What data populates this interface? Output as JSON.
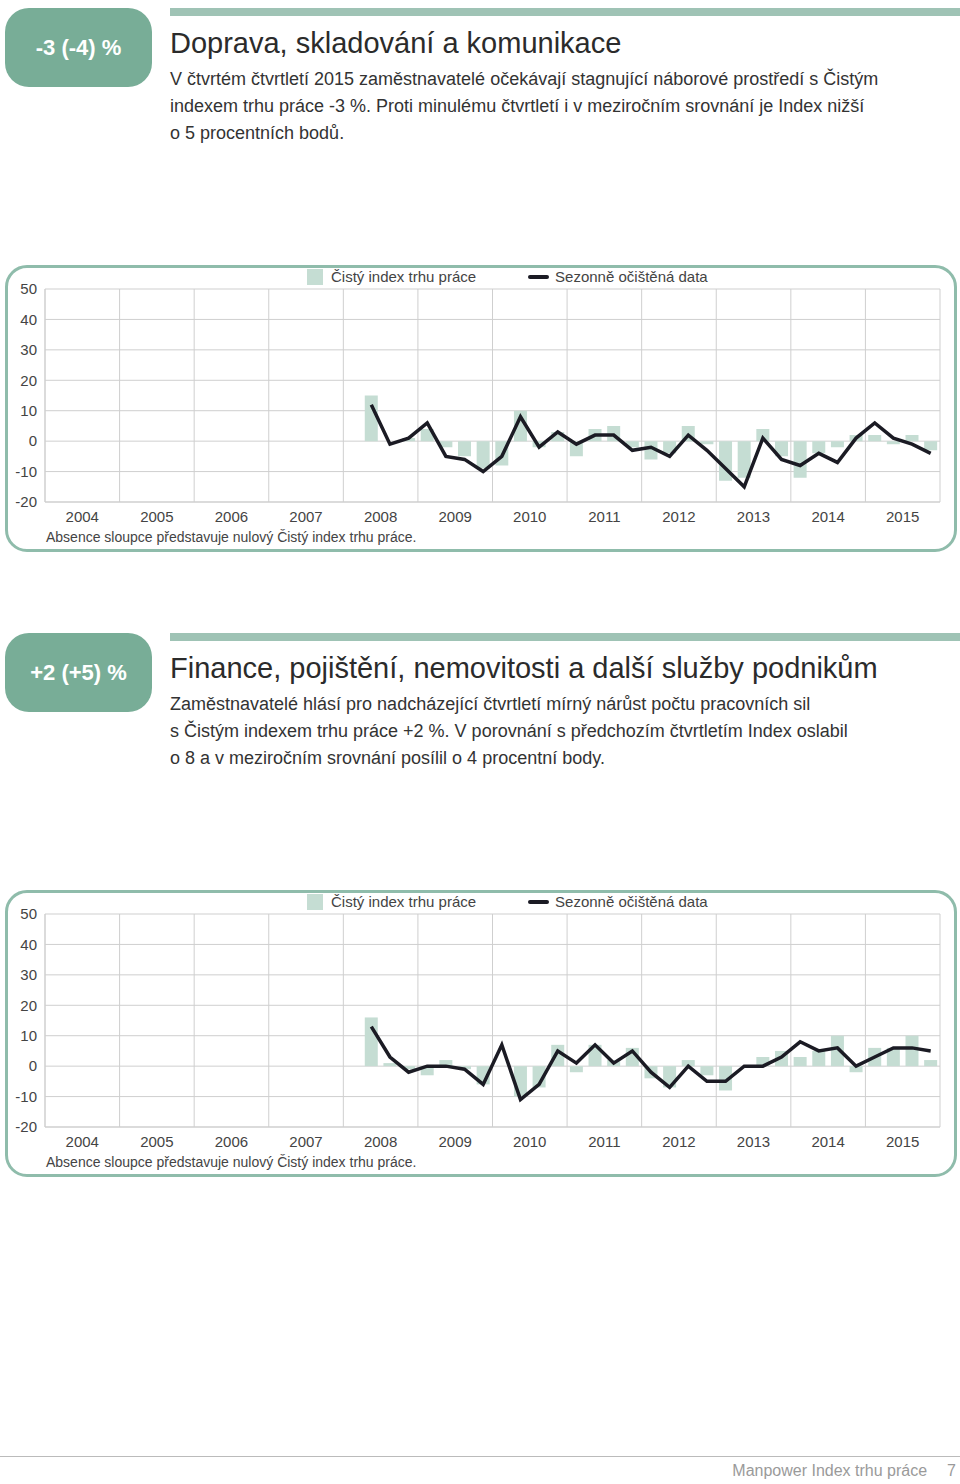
{
  "chart_data": [
    {
      "type": "combo",
      "title": "Doprava, skladování a komunikace",
      "subtitle": "V čtvrtém čtvrtletí 2015 zaměstnavatelé očekávají stagnující náborové prostředí s Čistým\nindexem trhu práce -3 %. Proti minulému čtvrtletí i v meziročním srovnání je Index nižší\no 5 procentních bodů.",
      "annotations": {
        "badge": "-3 (-4) %",
        "note": "Absence sloupce představuje nulový Čistý index trhu práce."
      },
      "categories": [
        null,
        "2004",
        null,
        null,
        null,
        "2005",
        null,
        null,
        null,
        "2006",
        null,
        null,
        null,
        "2007",
        null,
        null,
        null,
        "2008",
        null,
        null,
        null,
        "2009",
        null,
        null,
        null,
        "2010",
        null,
        null,
        null,
        "2011",
        null,
        null,
        null,
        "2012",
        null,
        null,
        null,
        "2013",
        null,
        null,
        null,
        "2014",
        null,
        null,
        null,
        "2015",
        null,
        null
      ],
      "series": [
        {
          "name": "Čistý index trhu práce",
          "type": "bar",
          "color": "#c5ddd3",
          "values": [
            null,
            null,
            null,
            null,
            null,
            null,
            null,
            null,
            null,
            null,
            null,
            null,
            null,
            null,
            null,
            null,
            null,
            15,
            0,
            1,
            4,
            -2,
            -5,
            -9,
            -8,
            10,
            -2,
            3,
            -5,
            4,
            5,
            -2,
            -6,
            -4,
            5,
            -1,
            -13,
            -12,
            4,
            -5,
            -12,
            -4,
            -2,
            2,
            2,
            -1,
            2,
            -3
          ]
        },
        {
          "name": "Sezonně očištěná data",
          "type": "line",
          "color": "#1b1b24",
          "values": [
            null,
            null,
            null,
            null,
            null,
            null,
            null,
            null,
            null,
            null,
            null,
            null,
            null,
            null,
            null,
            null,
            null,
            12,
            -1,
            1,
            6,
            -5,
            -6,
            -10,
            -5,
            8,
            -2,
            3,
            -1,
            2,
            2,
            -3,
            -2,
            -5,
            2,
            -3,
            -9,
            -15,
            1,
            -6,
            -8,
            -4,
            -7,
            1,
            6,
            1,
            -1,
            -4
          ]
        }
      ],
      "ylim": [
        -20,
        50
      ],
      "yticks": [
        -20,
        -10,
        0,
        10,
        20,
        30,
        40,
        50
      ],
      "grid": true,
      "legend": "top"
    },
    {
      "type": "combo",
      "title": "Finance, pojištění, nemovitosti a další služby podnikům",
      "subtitle": "Zaměstnavatelé hlásí pro nadcházející čtvrtletí mírný nárůst počtu pracovních sil\ns Čistým indexem trhu práce +2 %. V porovnání s předchozím čtvrtletím Index oslabil\no 8 a v meziročním srovnání posílil o 4 procentní body.",
      "annotations": {
        "badge": "+2 (+5) %",
        "note": "Absence sloupce představuje nulový Čistý index trhu práce."
      },
      "categories": [
        null,
        "2004",
        null,
        null,
        null,
        "2005",
        null,
        null,
        null,
        "2006",
        null,
        null,
        null,
        "2007",
        null,
        null,
        null,
        "2008",
        null,
        null,
        null,
        "2009",
        null,
        null,
        null,
        "2010",
        null,
        null,
        null,
        "2011",
        null,
        null,
        null,
        "2012",
        null,
        null,
        null,
        "2013",
        null,
        null,
        null,
        "2014",
        null,
        null,
        null,
        "2015",
        null,
        null
      ],
      "series": [
        {
          "name": "Čistý index trhu práce",
          "type": "bar",
          "color": "#c5ddd3",
          "values": [
            null,
            null,
            null,
            null,
            null,
            null,
            null,
            null,
            null,
            null,
            null,
            null,
            null,
            null,
            null,
            null,
            null,
            16,
            1,
            -1,
            -3,
            2,
            -1,
            -6,
            0,
            -10,
            -7,
            7,
            -2,
            7,
            2,
            6,
            -4,
            -7,
            2,
            -3,
            -8,
            0,
            3,
            5,
            3,
            5,
            10,
            -2,
            6,
            6,
            10,
            2
          ]
        },
        {
          "name": "Sezonně očištěná data",
          "type": "line",
          "color": "#1b1b24",
          "values": [
            null,
            null,
            null,
            null,
            null,
            null,
            null,
            null,
            null,
            null,
            null,
            null,
            null,
            null,
            null,
            null,
            null,
            13,
            3,
            -2,
            0,
            0,
            -1,
            -6,
            7,
            -11,
            -6,
            5,
            1,
            7,
            1,
            5,
            -2,
            -7,
            0,
            -5,
            -5,
            0,
            0,
            3,
            8,
            5,
            6,
            0,
            3,
            6,
            6,
            5
          ]
        }
      ],
      "ylim": [
        -20,
        50
      ],
      "yticks": [
        -20,
        -10,
        0,
        10,
        20,
        30,
        40,
        50
      ],
      "grid": true,
      "legend": "top"
    }
  ],
  "footer": {
    "text": "Manpower Index trhu práce",
    "page": 7
  }
}
